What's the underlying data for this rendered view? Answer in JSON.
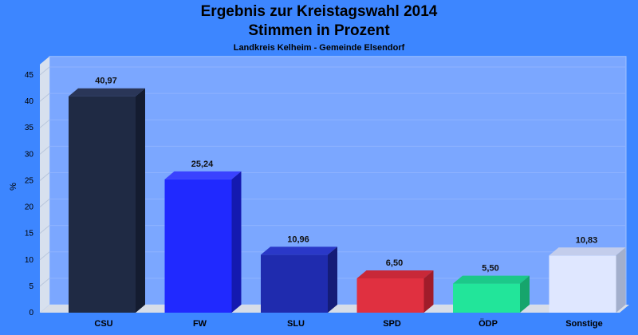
{
  "chart_data": {
    "type": "bar",
    "title": "Ergebnis zur Kreistagswahl 2014",
    "subtitle": "Stimmen in Prozent",
    "caption": "Landkreis Kelheim - Gemeinde Elsendorf",
    "ylabel": "%",
    "xlabel": "",
    "ylim": [
      0,
      47
    ],
    "yticks": [
      0,
      5,
      10,
      15,
      20,
      25,
      30,
      35,
      40,
      45
    ],
    "grid": true,
    "categories": [
      "CSU",
      "FW",
      "SLU",
      "SPD",
      "ÖDP",
      "Sonstige"
    ],
    "values": [
      40.97,
      25.24,
      10.96,
      6.5,
      5.5,
      10.83
    ],
    "value_labels": [
      "40,97",
      "25,24",
      "10,96",
      "6,50",
      "5,50",
      "10,83"
    ],
    "colors": [
      "#1f2a44",
      "#2029ff",
      "#1f2bae",
      "#e03040",
      "#22e59a",
      "#dfe7ff"
    ],
    "side_colors": [
      "#141c30",
      "#1419b0",
      "#141c78",
      "#a01c2a",
      "#16a56c",
      "#a3afcc"
    ],
    "top_colors": [
      "#2a3658",
      "#3a42ff",
      "#2a38c8",
      "#c82838",
      "#1cc889",
      "#c3cdec"
    ]
  }
}
